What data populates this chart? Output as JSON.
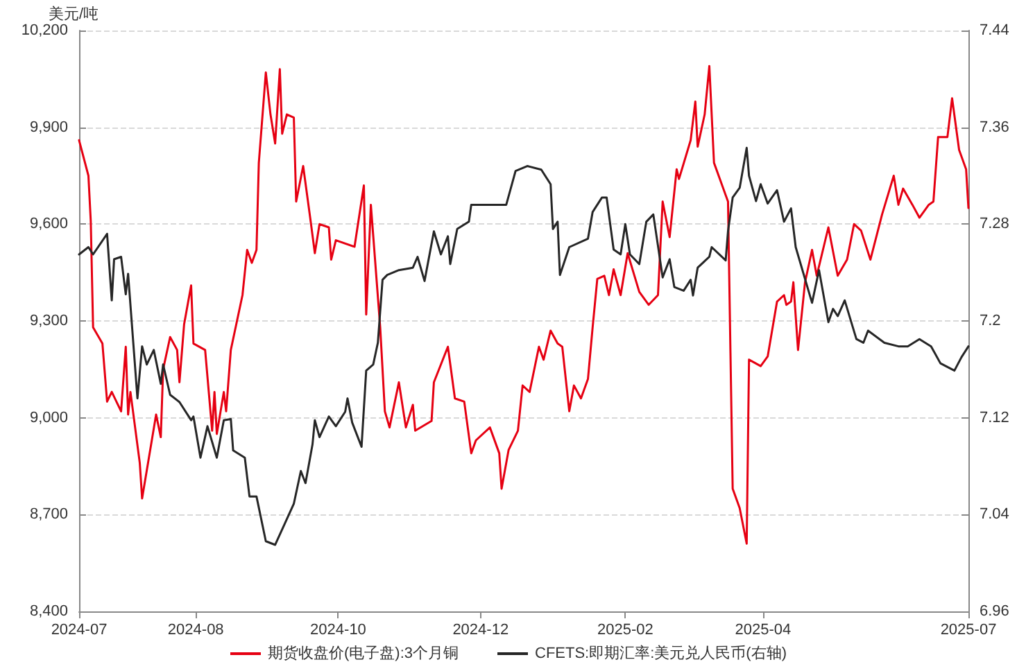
{
  "chart_data": {
    "type": "line",
    "ylabel": "美元/吨",
    "xlim": [
      "2024-06-12",
      "2025-06-28"
    ],
    "xticks": [
      {
        "value": "2024-06-12",
        "label": "2024-07"
      },
      "2024-08",
      "2024-10",
      "2024-12",
      "2025-02",
      "2025-04",
      {
        "value": "2025-06-28",
        "label": "2025-07"
      }
    ],
    "ylim": [
      8400,
      10200
    ],
    "yticks": [
      {
        "value": 8400,
        "label": "8,400"
      },
      {
        "value": 8700,
        "label": "8,700"
      },
      {
        "value": 9000,
        "label": "9,000"
      },
      {
        "value": 9300,
        "label": "9,300"
      },
      {
        "value": 9600,
        "label": "9,600"
      },
      {
        "value": 9900,
        "label": "9,900"
      },
      {
        "value": 10200,
        "label": "10,200"
      }
    ],
    "y2lim": [
      6.96,
      7.44
    ],
    "y2ticks": [
      6.96,
      7.04,
      7.12,
      7.2,
      7.28,
      7.36,
      7.44
    ],
    "grid": "y",
    "legend": "bottom",
    "marker": "none",
    "line_style": "solid",
    "series": [
      {
        "name": "期货收盘价(电子盘):3个月铜",
        "color": "#e60012",
        "x": [
          "2024-06-12",
          "2024-06-16",
          "2024-06-17",
          "2024-06-18",
          "2024-06-22",
          "2024-06-24",
          "2024-06-26",
          "2024-06-30",
          "2024-07-02",
          "2024-07-03",
          "2024-07-04",
          "2024-07-08",
          "2024-07-09",
          "2024-07-15",
          "2024-07-17",
          "2024-07-18",
          "2024-07-21",
          "2024-07-24",
          "2024-07-25",
          "2024-07-27",
          "2024-07-30",
          "2024-07-31",
          "2024-08-05",
          "2024-08-08",
          "2024-08-09",
          "2024-08-10",
          "2024-08-13",
          "2024-08-14",
          "2024-08-16",
          "2024-08-21",
          "2024-08-23",
          "2024-08-25",
          "2024-08-27",
          "2024-08-28",
          "2024-08-31",
          "2024-09-02",
          "2024-09-04",
          "2024-09-06",
          "2024-09-07",
          "2024-09-09",
          "2024-09-12",
          "2024-09-13",
          "2024-09-16",
          "2024-09-19",
          "2024-09-21",
          "2024-09-23",
          "2024-09-27",
          "2024-09-28",
          "2024-09-30",
          "2024-10-08",
          "2024-10-12",
          "2024-10-13",
          "2024-10-15",
          "2024-10-19",
          "2024-10-21",
          "2024-10-23",
          "2024-10-27",
          "2024-10-30",
          "2024-11-02",
          "2024-11-03",
          "2024-11-10",
          "2024-11-11",
          "2024-11-17",
          "2024-11-20",
          "2024-11-24",
          "2024-11-27",
          "2024-11-29",
          "2024-12-05",
          "2024-12-09",
          "2024-12-10",
          "2024-12-13",
          "2024-12-17",
          "2024-12-19",
          "2024-12-22",
          "2024-12-26",
          "2024-12-28",
          "2024-12-31",
          "2025-01-03",
          "2025-01-05",
          "2025-01-08",
          "2025-01-10",
          "2025-01-13",
          "2025-01-16",
          "2025-01-18",
          "2025-01-20",
          "2025-01-23",
          "2025-01-25",
          "2025-01-27",
          "2025-01-30",
          "2025-02-02",
          "2025-02-07",
          "2025-02-11",
          "2025-02-15",
          "2025-02-17",
          "2025-02-20",
          "2025-02-23",
          "2025-02-24",
          "2025-03-01",
          "2025-03-03",
          "2025-03-04",
          "2025-03-07",
          "2025-03-09",
          "2025-03-11",
          "2025-03-16",
          "2025-03-17",
          "2025-03-19",
          "2025-03-22",
          "2025-03-25",
          "2025-03-26",
          "2025-03-31",
          "2025-04-03",
          "2025-04-07",
          "2025-04-10",
          "2025-04-11",
          "2025-04-13",
          "2025-04-14",
          "2025-04-16",
          "2025-04-19",
          "2025-04-22",
          "2025-04-24",
          "2025-04-29",
          "2025-05-03",
          "2025-05-07",
          "2025-05-10",
          "2025-05-13",
          "2025-05-17",
          "2025-05-22",
          "2025-05-27",
          "2025-05-29",
          "2025-05-31",
          "2025-06-04",
          "2025-06-07",
          "2025-06-11",
          "2025-06-13",
          "2025-06-15",
          "2025-06-19",
          "2025-06-21",
          "2025-06-24",
          "2025-06-27",
          "2025-06-28"
        ],
        "values": [
          9860,
          9750,
          9610,
          9280,
          9230,
          9050,
          9080,
          9020,
          9220,
          9010,
          9080,
          8860,
          8750,
          9010,
          8940,
          9150,
          9250,
          9210,
          9110,
          9290,
          9410,
          9230,
          9210,
          8960,
          9080,
          8950,
          9080,
          9020,
          9210,
          9380,
          9520,
          9480,
          9520,
          9790,
          10070,
          9940,
          9850,
          10080,
          9880,
          9940,
          9930,
          9670,
          9780,
          9620,
          9510,
          9600,
          9590,
          9490,
          9550,
          9530,
          9720,
          9320,
          9660,
          9280,
          9020,
          8970,
          9110,
          8970,
          9040,
          8960,
          8990,
          9110,
          9220,
          9060,
          9050,
          8890,
          8930,
          8970,
          8890,
          8780,
          8900,
          8960,
          9100,
          9080,
          9220,
          9180,
          9270,
          9230,
          9220,
          9020,
          9100,
          9060,
          9120,
          9280,
          9430,
          9440,
          9380,
          9460,
          9380,
          9510,
          9390,
          9350,
          9380,
          9670,
          9560,
          9770,
          9740,
          9860,
          9980,
          9840,
          9940,
          10090,
          9790,
          9690,
          9670,
          8780,
          8720,
          8610,
          9180,
          9160,
          9190,
          9360,
          9380,
          9350,
          9360,
          9420,
          9210,
          9420,
          9520,
          9440,
          9590,
          9440,
          9490,
          9600,
          9580,
          9490,
          9630,
          9750,
          9660,
          9710,
          9660,
          9620,
          9660,
          9670,
          9870,
          9870,
          9990,
          9830,
          9770,
          9650
        ]
      },
      {
        "name": "CFETS:即期汇率:美元兑人民币(右轴)",
        "color": "#262626",
        "axis": "y2",
        "x": [
          "2024-06-12",
          "2024-06-16",
          "2024-06-18",
          "2024-06-24",
          "2024-06-26",
          "2024-06-27",
          "2024-06-30",
          "2024-07-02",
          "2024-07-03",
          "2024-07-07",
          "2024-07-09",
          "2024-07-11",
          "2024-07-14",
          "2024-07-17",
          "2024-07-18",
          "2024-07-21",
          "2024-07-25",
          "2024-07-30",
          "2024-07-31",
          "2024-08-03",
          "2024-08-06",
          "2024-08-10",
          "2024-08-13",
          "2024-08-16",
          "2024-08-17",
          "2024-08-22",
          "2024-08-24",
          "2024-08-27",
          "2024-08-31",
          "2024-09-04",
          "2024-09-12",
          "2024-09-15",
          "2024-09-17",
          "2024-09-20",
          "2024-09-21",
          "2024-09-23",
          "2024-09-27",
          "2024-09-30",
          "2024-10-04",
          "2024-10-05",
          "2024-10-07",
          "2024-10-11",
          "2024-10-13",
          "2024-10-16",
          "2024-10-18",
          "2024-10-20",
          "2024-10-22",
          "2024-10-27",
          "2024-11-02",
          "2024-11-04",
          "2024-11-07",
          "2024-11-11",
          "2024-11-14",
          "2024-11-17",
          "2024-11-18",
          "2024-11-21",
          "2024-11-26",
          "2024-11-27",
          "2024-12-12",
          "2024-12-16",
          "2024-12-21",
          "2024-12-27",
          "2024-12-31",
          "2025-01-01",
          "2025-01-03",
          "2025-01-04",
          "2025-01-08",
          "2025-01-16",
          "2025-01-18",
          "2025-01-22",
          "2025-01-24",
          "2025-01-27",
          "2025-01-30",
          "2025-02-01",
          "2025-02-03",
          "2025-02-07",
          "2025-02-10",
          "2025-02-13",
          "2025-02-17",
          "2025-02-20",
          "2025-02-22",
          "2025-02-26",
          "2025-03-01",
          "2025-03-02",
          "2025-03-04",
          "2025-03-09",
          "2025-03-10",
          "2025-03-16",
          "2025-03-17",
          "2025-03-19",
          "2025-03-22",
          "2025-03-25",
          "2025-03-26",
          "2025-03-29",
          "2025-03-31",
          "2025-04-03",
          "2025-04-07",
          "2025-04-10",
          "2025-04-13",
          "2025-04-15",
          "2025-04-22",
          "2025-04-25",
          "2025-04-29",
          "2025-05-01",
          "2025-05-03",
          "2025-05-06",
          "2025-05-11",
          "2025-05-14",
          "2025-05-16",
          "2025-05-23",
          "2025-05-29",
          "2025-06-02",
          "2025-06-07",
          "2025-06-12",
          "2025-06-16",
          "2025-06-22",
          "2025-06-25",
          "2025-06-28"
        ],
        "values": [
          7.255,
          7.261,
          7.255,
          7.272,
          7.217,
          7.251,
          7.253,
          7.222,
          7.239,
          7.136,
          7.179,
          7.164,
          7.176,
          7.148,
          7.164,
          7.139,
          7.133,
          7.118,
          7.121,
          7.087,
          7.113,
          7.087,
          7.118,
          7.119,
          7.093,
          7.087,
          7.055,
          7.055,
          7.018,
          7.015,
          7.049,
          7.076,
          7.066,
          7.098,
          7.118,
          7.104,
          7.121,
          7.113,
          7.125,
          7.136,
          7.116,
          7.096,
          7.159,
          7.164,
          7.182,
          7.234,
          7.238,
          7.242,
          7.244,
          7.253,
          7.233,
          7.274,
          7.255,
          7.27,
          7.247,
          7.276,
          7.282,
          7.296,
          7.296,
          7.324,
          7.328,
          7.325,
          7.313,
          7.276,
          7.282,
          7.238,
          7.261,
          7.268,
          7.29,
          7.302,
          7.302,
          7.259,
          7.255,
          7.28,
          7.255,
          7.247,
          7.282,
          7.288,
          7.236,
          7.251,
          7.228,
          7.225,
          7.234,
          7.221,
          7.244,
          7.253,
          7.261,
          7.25,
          7.274,
          7.302,
          7.31,
          7.343,
          7.32,
          7.299,
          7.313,
          7.297,
          7.308,
          7.282,
          7.293,
          7.261,
          7.215,
          7.242,
          7.199,
          7.21,
          7.204,
          7.217,
          7.185,
          7.182,
          7.192,
          7.182,
          7.179,
          7.179,
          7.185,
          7.179,
          7.165,
          7.159,
          7.17,
          7.179
        ]
      }
    ]
  }
}
